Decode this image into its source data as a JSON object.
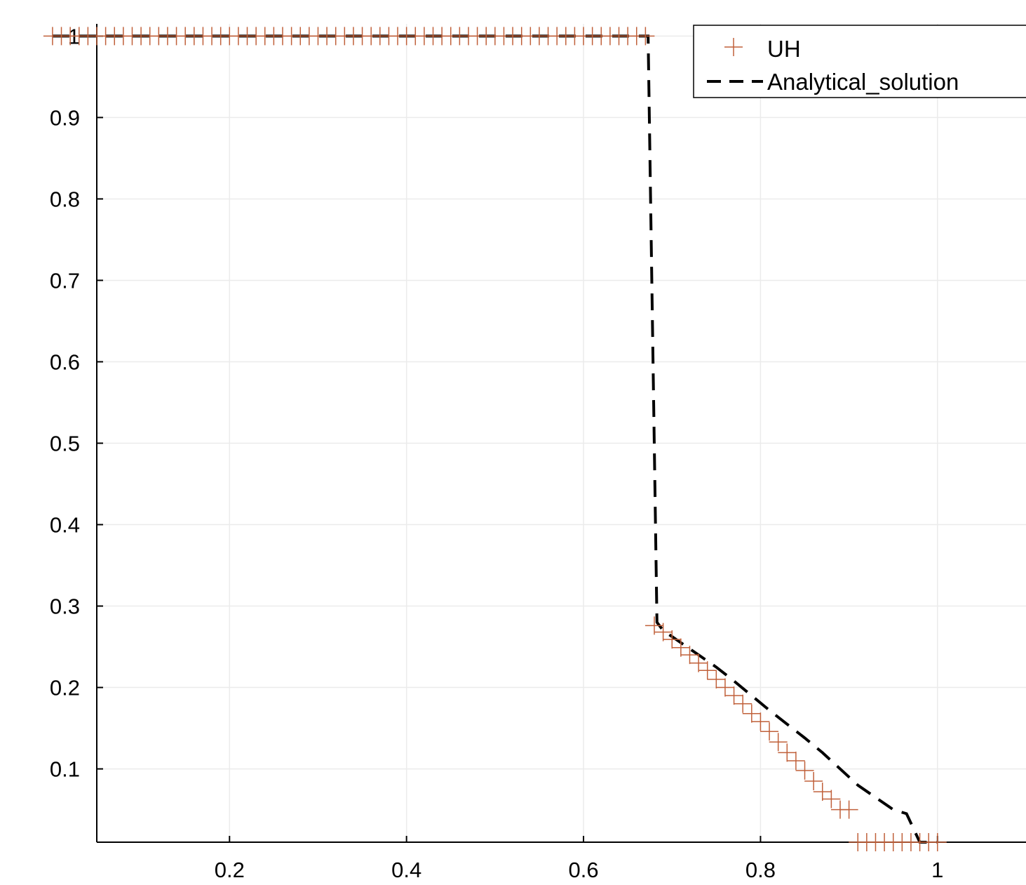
{
  "chart_data": {
    "type": "line",
    "title": "",
    "xlabel": "",
    "ylabel": "",
    "xlim": [
      0.05,
      1.1
    ],
    "ylim": [
      0.01,
      1.015
    ],
    "grid": true,
    "legend_position": "top-right",
    "x_ticks": [
      0.2,
      0.4,
      0.6,
      0.8,
      1
    ],
    "x_tick_labels": [
      "0.2",
      "0.4",
      "0.6",
      "0.8",
      "1"
    ],
    "y_ticks": [
      0.1,
      0.2,
      0.3,
      0.4,
      0.5,
      0.6,
      0.7,
      0.8,
      0.9,
      1
    ],
    "y_tick_labels": [
      "0.1",
      "0.2",
      "0.3",
      "0.4",
      "0.5",
      "0.6",
      "0.7",
      "0.8",
      "0.9",
      "1"
    ],
    "legend": [
      "UH",
      "Analytical_solution"
    ],
    "series": [
      {
        "name": "UH",
        "style": "markers",
        "marker": "plus",
        "color": "#c0603a",
        "x": [
          0.0,
          0.01,
          0.02,
          0.03,
          0.04,
          0.05,
          0.06,
          0.07,
          0.08,
          0.09,
          0.1,
          0.11,
          0.12,
          0.13,
          0.14,
          0.15,
          0.16,
          0.17,
          0.18,
          0.19,
          0.2,
          0.21,
          0.22,
          0.23,
          0.24,
          0.25,
          0.26,
          0.27,
          0.28,
          0.29,
          0.3,
          0.31,
          0.32,
          0.33,
          0.34,
          0.35,
          0.36,
          0.37,
          0.38,
          0.39,
          0.4,
          0.41,
          0.42,
          0.43,
          0.44,
          0.45,
          0.46,
          0.47,
          0.48,
          0.49,
          0.5,
          0.51,
          0.52,
          0.53,
          0.54,
          0.55,
          0.56,
          0.57,
          0.58,
          0.59,
          0.6,
          0.61,
          0.62,
          0.63,
          0.64,
          0.65,
          0.66,
          0.67,
          0.68,
          0.69,
          0.7,
          0.71,
          0.72,
          0.73,
          0.74,
          0.75,
          0.76,
          0.77,
          0.78,
          0.79,
          0.8,
          0.81,
          0.82,
          0.83,
          0.84,
          0.85,
          0.86,
          0.87,
          0.88,
          0.89,
          0.9,
          0.91,
          0.92,
          0.93,
          0.94,
          0.95,
          0.96,
          0.97,
          0.98,
          0.99,
          1.0
        ],
        "y": [
          1,
          1,
          1,
          1,
          1,
          1,
          1,
          1,
          1,
          1,
          1,
          1,
          1,
          1,
          1,
          1,
          1,
          1,
          1,
          1,
          1,
          1,
          1,
          1,
          1,
          1,
          1,
          1,
          1,
          1,
          1,
          1,
          1,
          1,
          1,
          1,
          1,
          1,
          1,
          1,
          1,
          1,
          1,
          1,
          1,
          1,
          1,
          1,
          1,
          1,
          1,
          1,
          1,
          1,
          1,
          1,
          1,
          1,
          1,
          1,
          1,
          1,
          1,
          1,
          1,
          1,
          1,
          1,
          0.276,
          0.268,
          0.259,
          0.249,
          0.24,
          0.23,
          0.221,
          0.21,
          0.2,
          0.19,
          0.18,
          0.168,
          0.158,
          0.146,
          0.133,
          0.12,
          0.11,
          0.098,
          0.085,
          0.072,
          0.063,
          0.05,
          0.05,
          0.01,
          0.01,
          0.01,
          0.01,
          0.01,
          0.01,
          0.01,
          0.01,
          0.01,
          0.01
        ]
      },
      {
        "name": "Analytical_solution",
        "style": "dashed",
        "color": "#000000",
        "x": [
          0.0,
          0.673,
          0.683,
          0.69,
          0.71,
          0.73,
          0.75,
          0.77,
          0.79,
          0.81,
          0.83,
          0.85,
          0.87,
          0.88,
          0.89,
          0.91,
          0.93,
          0.95,
          0.965,
          0.98,
          0.99,
          1.0
        ],
        "y": [
          1,
          1,
          0.28,
          0.27,
          0.255,
          0.24,
          0.225,
          0.208,
          0.19,
          0.172,
          0.155,
          0.138,
          0.12,
          0.11,
          0.1,
          0.08,
          0.065,
          0.05,
          0.045,
          0.01,
          0.01,
          0.01
        ]
      }
    ]
  }
}
